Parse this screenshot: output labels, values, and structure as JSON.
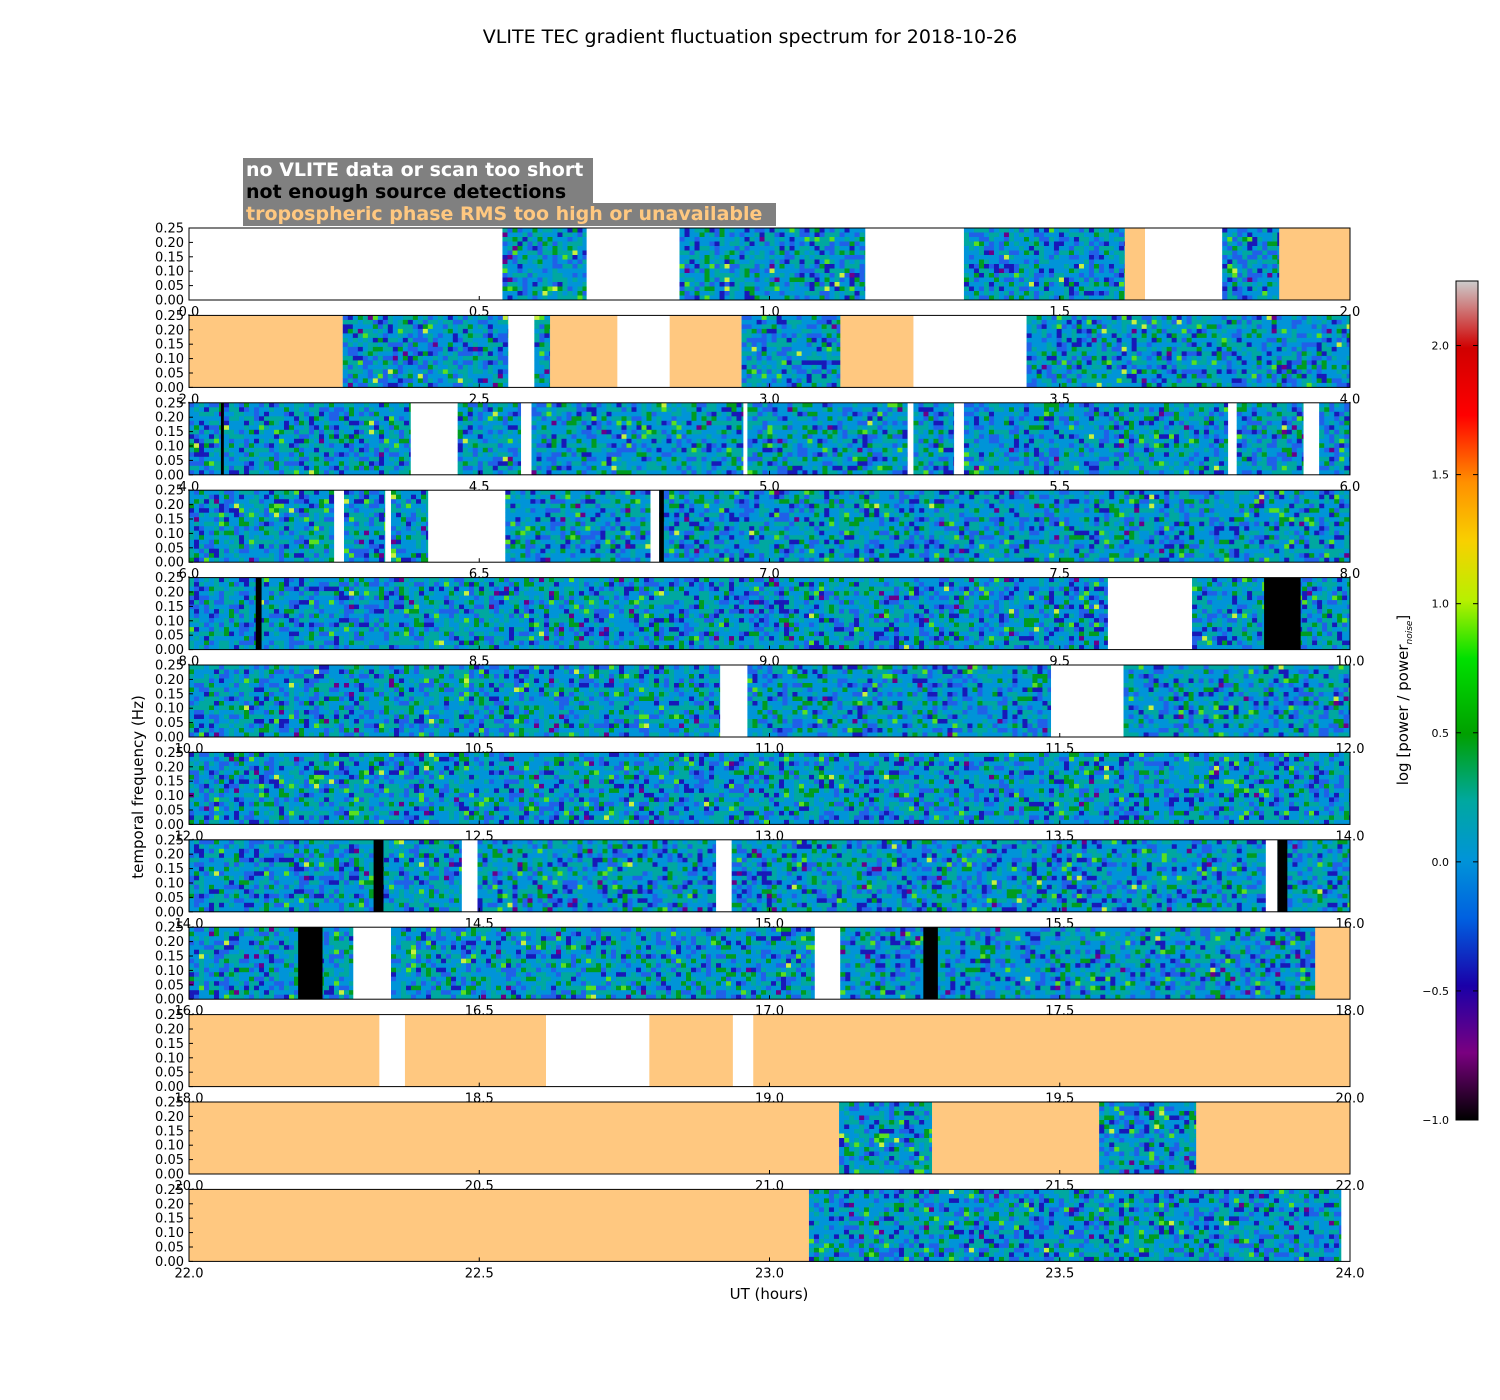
{
  "chart_data": {
    "type": "heatmap",
    "title": "VLITE TEC gradient fluctuation spectrum for 2018-10-26",
    "xlabel": "UT (hours)",
    "ylabel": "temporal frequency (Hz)",
    "ylim": [
      0.0,
      0.25
    ],
    "yticks": [
      "0.00",
      "0.05",
      "0.10",
      "0.15",
      "0.20",
      "0.25"
    ],
    "colorbar": {
      "label_main": "log [power / power",
      "label_sub": "noise",
      "label_close": "]",
      "range": [
        -1.0,
        2.25
      ],
      "ticks": [
        {
          "value": -1.0,
          "label": "−1.0"
        },
        {
          "value": -0.5,
          "label": "−0.5"
        },
        {
          "value": 0.0,
          "label": "0.0"
        },
        {
          "value": 0.5,
          "label": "0.5"
        },
        {
          "value": 1.0,
          "label": "1.0"
        },
        {
          "value": 1.5,
          "label": "1.5"
        },
        {
          "value": 2.0,
          "label": "2.0"
        }
      ]
    },
    "legend": {
      "placement": "top-left",
      "entries": [
        {
          "text": "no VLITE data or scan too short",
          "color": "#ffffff"
        },
        {
          "text": "not enough source detections",
          "color": "#000000"
        },
        {
          "text": "tropospheric phase RMS too high or unavailable",
          "color": "#ffc880"
        }
      ]
    },
    "panels": [
      {
        "range": [
          0.0,
          2.0
        ],
        "ticks": [
          "0.0",
          "0.5",
          "1.0",
          "1.5",
          "2.0"
        ],
        "segments": [
          [
            0.0,
            0.54,
            "none"
          ],
          [
            0.54,
            0.685,
            "data"
          ],
          [
            0.685,
            0.845,
            "none"
          ],
          [
            0.845,
            1.165,
            "data"
          ],
          [
            1.165,
            1.335,
            "none"
          ],
          [
            1.335,
            1.612,
            "data"
          ],
          [
            1.612,
            1.647,
            "trop"
          ],
          [
            1.647,
            1.78,
            "none"
          ],
          [
            1.78,
            1.878,
            "data"
          ],
          [
            1.878,
            2.0,
            "trop"
          ]
        ]
      },
      {
        "range": [
          2.0,
          4.0
        ],
        "ticks": [
          "2.0",
          "2.5",
          "3.0",
          "3.5",
          "4.0"
        ],
        "segments": [
          [
            2.0,
            2.265,
            "trop"
          ],
          [
            2.265,
            2.55,
            "data"
          ],
          [
            2.55,
            2.595,
            "none"
          ],
          [
            2.595,
            2.622,
            "data"
          ],
          [
            2.622,
            2.738,
            "trop"
          ],
          [
            2.738,
            2.828,
            "none"
          ],
          [
            2.828,
            2.952,
            "trop"
          ],
          [
            2.952,
            3.122,
            "data"
          ],
          [
            3.122,
            3.248,
            "trop"
          ],
          [
            3.248,
            3.443,
            "none"
          ],
          [
            3.443,
            4.0,
            "data"
          ]
        ]
      },
      {
        "range": [
          4.0,
          6.0
        ],
        "ticks": [
          "4.0",
          "4.5",
          "5.0",
          "5.5",
          "6.0"
        ],
        "segments": [
          [
            4.0,
            4.382,
            "data"
          ],
          [
            4.382,
            4.463,
            "none"
          ],
          [
            4.463,
            4.572,
            "data"
          ],
          [
            4.572,
            4.59,
            "none"
          ],
          [
            4.59,
            4.955,
            "data"
          ],
          [
            4.955,
            4.962,
            "none"
          ],
          [
            4.962,
            5.238,
            "data"
          ],
          [
            5.238,
            5.248,
            "none"
          ],
          [
            5.248,
            5.318,
            "data"
          ],
          [
            5.318,
            5.335,
            "none"
          ],
          [
            5.335,
            5.79,
            "data"
          ],
          [
            5.79,
            5.805,
            "none"
          ],
          [
            5.805,
            5.92,
            "data"
          ],
          [
            5.92,
            5.947,
            "none"
          ],
          [
            5.947,
            6.0,
            "data"
          ]
        ],
        "black": [
          [
            4.055,
            4.06
          ]
        ]
      },
      {
        "range": [
          6.0,
          8.0
        ],
        "ticks": [
          "6.0",
          "6.5",
          "7.0",
          "7.5",
          "8.0"
        ],
        "segments": [
          [
            6.0,
            6.25,
            "data"
          ],
          [
            6.25,
            6.267,
            "none"
          ],
          [
            6.267,
            6.338,
            "data"
          ],
          [
            6.338,
            6.348,
            "none"
          ],
          [
            6.348,
            6.412,
            "data"
          ],
          [
            6.412,
            6.545,
            "none"
          ],
          [
            6.545,
            6.795,
            "data"
          ],
          [
            6.795,
            6.81,
            "none"
          ],
          [
            6.81,
            8.0,
            "data"
          ]
        ],
        "black": [
          [
            6.81,
            6.818
          ]
        ]
      },
      {
        "range": [
          8.0,
          10.0
        ],
        "ticks": [
          "8.0",
          "8.5",
          "9.0",
          "9.5",
          "10.0"
        ],
        "segments": [
          [
            8.0,
            9.583,
            "data"
          ],
          [
            9.583,
            9.728,
            "none"
          ],
          [
            9.728,
            10.0,
            "data"
          ]
        ],
        "black": [
          [
            8.115,
            8.125
          ],
          [
            9.852,
            9.915
          ]
        ]
      },
      {
        "range": [
          10.0,
          12.0
        ],
        "ticks": [
          "10.0",
          "10.5",
          "11.0",
          "11.5",
          "12.0"
        ],
        "segments": [
          [
            10.0,
            10.915,
            "data"
          ],
          [
            10.915,
            10.962,
            "none"
          ],
          [
            10.962,
            11.485,
            "data"
          ],
          [
            11.485,
            11.61,
            "none"
          ],
          [
            11.61,
            12.0,
            "data"
          ]
        ]
      },
      {
        "range": [
          12.0,
          14.0
        ],
        "ticks": [
          "12.0",
          "12.5",
          "13.0",
          "13.5",
          "14.0"
        ],
        "segments": [
          [
            12.0,
            14.0,
            "data"
          ]
        ]
      },
      {
        "range": [
          14.0,
          16.0
        ],
        "ticks": [
          "14.0",
          "14.5",
          "15.0",
          "15.5",
          "16.0"
        ],
        "segments": [
          [
            14.0,
            14.47,
            "data"
          ],
          [
            14.47,
            14.497,
            "none"
          ],
          [
            14.497,
            14.908,
            "data"
          ],
          [
            14.908,
            14.935,
            "none"
          ],
          [
            14.935,
            15.855,
            "data"
          ],
          [
            15.855,
            15.875,
            "none"
          ],
          [
            15.875,
            16.0,
            "data"
          ]
        ],
        "black": [
          [
            14.318,
            14.335
          ],
          [
            15.875,
            15.892
          ]
        ]
      },
      {
        "range": [
          16.0,
          18.0
        ],
        "ticks": [
          "16.0",
          "16.5",
          "17.0",
          "17.5",
          "18.0"
        ],
        "segments": [
          [
            16.0,
            16.283,
            "data"
          ],
          [
            16.283,
            16.348,
            "none"
          ],
          [
            16.348,
            17.078,
            "data"
          ],
          [
            17.078,
            17.122,
            "none"
          ],
          [
            17.122,
            17.94,
            "data"
          ],
          [
            17.94,
            18.0,
            "trop"
          ]
        ],
        "black": [
          [
            16.188,
            16.23
          ],
          [
            17.265,
            17.29
          ]
        ]
      },
      {
        "range": [
          18.0,
          20.0
        ],
        "ticks": [
          "18.0",
          "18.5",
          "19.0",
          "19.5",
          "20.0"
        ],
        "segments": [
          [
            18.0,
            18.328,
            "trop"
          ],
          [
            18.328,
            18.372,
            "none"
          ],
          [
            18.372,
            18.615,
            "trop"
          ],
          [
            18.615,
            18.793,
            "none"
          ],
          [
            18.793,
            18.937,
            "trop"
          ],
          [
            18.937,
            18.972,
            "none"
          ],
          [
            18.972,
            20.0,
            "trop"
          ]
        ]
      },
      {
        "range": [
          20.0,
          22.0
        ],
        "ticks": [
          "20.0",
          "20.5",
          "21.0",
          "21.5",
          "22.0"
        ],
        "segments": [
          [
            20.0,
            21.12,
            "trop"
          ],
          [
            21.12,
            21.28,
            "data"
          ],
          [
            21.28,
            21.568,
            "trop"
          ],
          [
            21.568,
            21.735,
            "data"
          ],
          [
            21.735,
            22.0,
            "trop"
          ]
        ]
      },
      {
        "range": [
          22.0,
          24.0
        ],
        "ticks": [
          "22.0",
          "22.5",
          "23.0",
          "23.5",
          "24.0"
        ],
        "segments": [
          [
            22.0,
            23.068,
            "trop"
          ],
          [
            23.068,
            23.985,
            "data"
          ],
          [
            23.985,
            24.0,
            "none"
          ]
        ]
      }
    ]
  }
}
